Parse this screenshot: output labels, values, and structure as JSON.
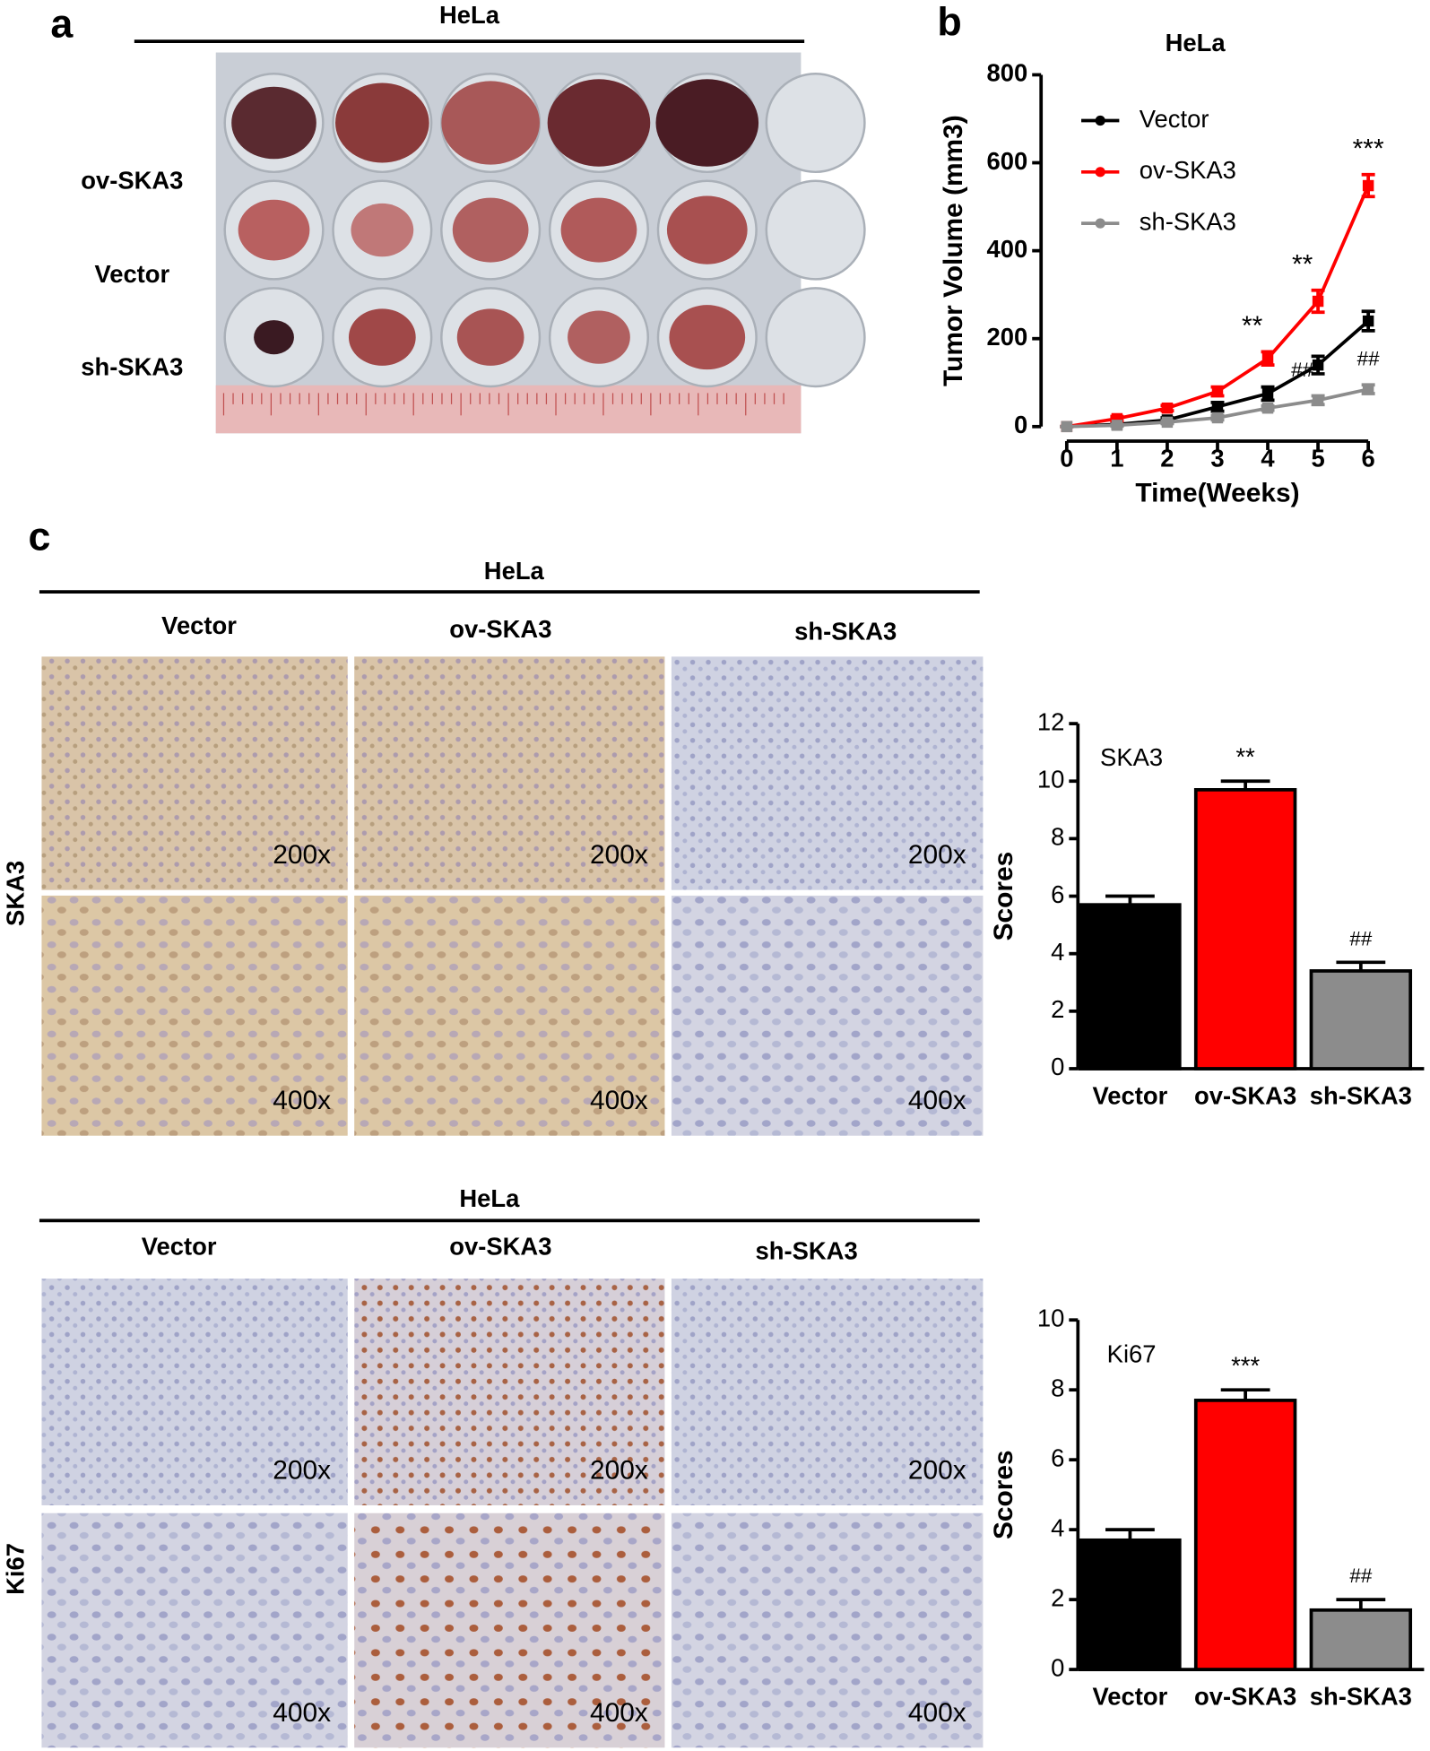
{
  "panels": {
    "a": {
      "label": "a",
      "title": "HeLa",
      "rows": [
        "ov-SKA3",
        "Vector",
        "sh-SKA3"
      ]
    },
    "b": {
      "label": "b"
    },
    "c": {
      "label": "c",
      "blocks": [
        {
          "title": "HeLa",
          "columns": [
            "Vector",
            "ov-SKA3",
            "sh-SKA3"
          ],
          "stain": "SKA3",
          "magnifications": [
            "200x",
            "400x"
          ]
        },
        {
          "title": "HeLa",
          "columns": [
            "Vector",
            "ov-SKA3",
            "sh-SKA3"
          ],
          "stain": "Ki67",
          "magnifications": [
            "200x",
            "400x"
          ]
        }
      ]
    }
  },
  "chart_data": [
    {
      "type": "line",
      "title": "HeLa",
      "x_label": "Time(Weeks)",
      "y_label": "Tumor Volume (mm3)",
      "x": [
        0,
        1,
        2,
        3,
        4,
        5,
        6
      ],
      "xlim": [
        0,
        6
      ],
      "xticks": [
        0,
        1,
        2,
        3,
        4,
        5,
        6
      ],
      "ylim": [
        0,
        800
      ],
      "yticks": [
        0,
        200,
        400,
        600,
        800
      ],
      "legend": "upper left",
      "series": [
        {
          "name": "Vector",
          "color": "#000000",
          "values": [
            0,
            5,
            15,
            45,
            75,
            140,
            240
          ],
          "errors": [
            0,
            3,
            5,
            10,
            15,
            20,
            22
          ],
          "annotations": [
            null,
            null,
            null,
            null,
            null,
            null,
            null
          ]
        },
        {
          "name": "ov-SKA3",
          "color": "#ff0000",
          "values": [
            0,
            18,
            42,
            80,
            155,
            285,
            548
          ],
          "errors": [
            0,
            5,
            6,
            10,
            15,
            25,
            25
          ],
          "annotations": [
            null,
            null,
            null,
            null,
            "**",
            "**",
            "***"
          ]
        },
        {
          "name": "sh-SKA3",
          "color": "#8c8c8c",
          "values": [
            0,
            3,
            10,
            20,
            42,
            60,
            85
          ],
          "errors": [
            0,
            2,
            3,
            5,
            5,
            10,
            10
          ],
          "annotations": [
            null,
            null,
            null,
            null,
            null,
            "##",
            "##"
          ]
        }
      ]
    },
    {
      "type": "bar",
      "label": "SKA3",
      "y_label": "Scores",
      "categories": [
        "Vector",
        "ov-SKA3",
        "sh-SKA3"
      ],
      "values": [
        5.7,
        9.7,
        3.4
      ],
      "errors": [
        0.3,
        0.3,
        0.3
      ],
      "colors": [
        "#000000",
        "#ff0000",
        "#8c8c8c"
      ],
      "annotations": [
        null,
        "**",
        "##"
      ],
      "ylim": [
        0,
        12
      ],
      "yticks": [
        0,
        2,
        4,
        6,
        8,
        10,
        12
      ]
    },
    {
      "type": "bar",
      "label": "Ki67",
      "y_label": "Scores",
      "categories": [
        "Vector",
        "ov-SKA3",
        "sh-SKA3"
      ],
      "values": [
        3.7,
        7.7,
        1.7
      ],
      "errors": [
        0.3,
        0.3,
        0.3
      ],
      "colors": [
        "#000000",
        "#ff0000",
        "#8c8c8c"
      ],
      "annotations": [
        null,
        "***",
        "##"
      ],
      "ylim": [
        0,
        10
      ],
      "yticks": [
        0,
        2,
        4,
        6,
        8,
        10
      ]
    }
  ]
}
